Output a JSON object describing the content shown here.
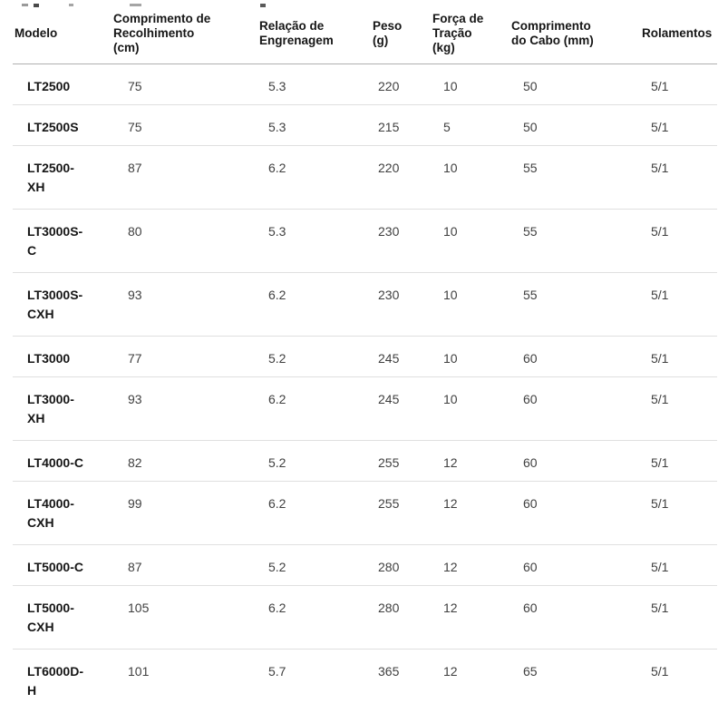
{
  "colors": {
    "background": "#ffffff",
    "header_text": "#161616",
    "value_text": "#3f3f3f",
    "header_rule": "#afafaf",
    "row_rule": "#e0e0e0"
  },
  "table": {
    "columns": [
      {
        "id": "modelo",
        "label": "Modelo"
      },
      {
        "id": "recolhimento",
        "label": "Comprimento de\nRecolhimento\n(cm)"
      },
      {
        "id": "relacao",
        "label": "Relação de\nEngrenagem"
      },
      {
        "id": "peso",
        "label": "Peso\n(g)"
      },
      {
        "id": "tracao",
        "label": "Força de\nTração\n(kg)"
      },
      {
        "id": "cabo",
        "label": "Comprimento\ndo Cabo (mm)"
      },
      {
        "id": "rolamentos",
        "label": "Rolamentos"
      }
    ],
    "rows": [
      [
        "LT2500",
        "75",
        "5.3",
        "220",
        "10",
        "50",
        "5/1"
      ],
      [
        "LT2500S",
        "75",
        "5.3",
        "215",
        "5",
        "50",
        "5/1"
      ],
      [
        "LT2500-\nXH",
        "87",
        "6.2",
        "220",
        "10",
        "55",
        "5/1"
      ],
      [
        "LT3000S-\nC",
        "80",
        "5.3",
        "230",
        "10",
        "55",
        "5/1"
      ],
      [
        "LT3000S-\nCXH",
        "93",
        "6.2",
        "230",
        "10",
        "55",
        "5/1"
      ],
      [
        "LT3000",
        "77",
        "5.2",
        "245",
        "10",
        "60",
        "5/1"
      ],
      [
        "LT3000-\nXH",
        "93",
        "6.2",
        "245",
        "10",
        "60",
        "5/1"
      ],
      [
        "LT4000-C",
        "82",
        "5.2",
        "255",
        "12",
        "60",
        "5/1"
      ],
      [
        "LT4000-\nCXH",
        "99",
        "6.2",
        "255",
        "12",
        "60",
        "5/1"
      ],
      [
        "LT5000-C",
        "87",
        "5.2",
        "280",
        "12",
        "60",
        "5/1"
      ],
      [
        "LT5000-\nCXH",
        "105",
        "6.2",
        "280",
        "12",
        "60",
        "5/1"
      ],
      [
        "LT6000D-\nH",
        "101",
        "5.7",
        "365",
        "12",
        "65",
        "5/1"
      ]
    ]
  }
}
